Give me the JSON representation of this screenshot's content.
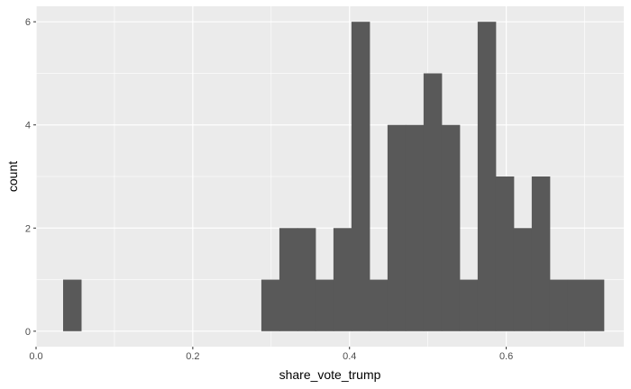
{
  "chart_data": {
    "type": "bar",
    "subtype": "histogram",
    "xlabel": "share_vote_trump",
    "ylabel": "count",
    "xlim": [
      0.0,
      0.75
    ],
    "ylim": [
      0,
      6
    ],
    "xticks": [
      0.0,
      0.2,
      0.4,
      0.6
    ],
    "yticks": [
      0,
      2,
      4,
      6
    ],
    "grid": true,
    "bar_color": "#595959",
    "panel_color": "#ebebeb",
    "grid_color": "#ffffff",
    "bins": [
      {
        "x0": 0.0345,
        "x1": 0.0575,
        "count": 1
      },
      {
        "x0": 0.2875,
        "x1": 0.3105,
        "count": 1
      },
      {
        "x0": 0.3105,
        "x1": 0.3335,
        "count": 2
      },
      {
        "x0": 0.3335,
        "x1": 0.3565,
        "count": 2
      },
      {
        "x0": 0.3565,
        "x1": 0.3795,
        "count": 1
      },
      {
        "x0": 0.3795,
        "x1": 0.4025,
        "count": 2
      },
      {
        "x0": 0.4025,
        "x1": 0.4255,
        "count": 6
      },
      {
        "x0": 0.4255,
        "x1": 0.4485,
        "count": 1
      },
      {
        "x0": 0.4485,
        "x1": 0.4715,
        "count": 4
      },
      {
        "x0": 0.4715,
        "x1": 0.4945,
        "count": 4
      },
      {
        "x0": 0.4945,
        "x1": 0.5175,
        "count": 5
      },
      {
        "x0": 0.5175,
        "x1": 0.5405,
        "count": 4
      },
      {
        "x0": 0.5405,
        "x1": 0.5635,
        "count": 1
      },
      {
        "x0": 0.5635,
        "x1": 0.5865,
        "count": 6
      },
      {
        "x0": 0.5865,
        "x1": 0.6095,
        "count": 3
      },
      {
        "x0": 0.6095,
        "x1": 0.6325,
        "count": 2
      },
      {
        "x0": 0.6325,
        "x1": 0.6555,
        "count": 3
      },
      {
        "x0": 0.6555,
        "x1": 0.6785,
        "count": 1
      },
      {
        "x0": 0.6785,
        "x1": 0.7015,
        "count": 1
      },
      {
        "x0": 0.7015,
        "x1": 0.7245,
        "count": 1
      }
    ]
  }
}
